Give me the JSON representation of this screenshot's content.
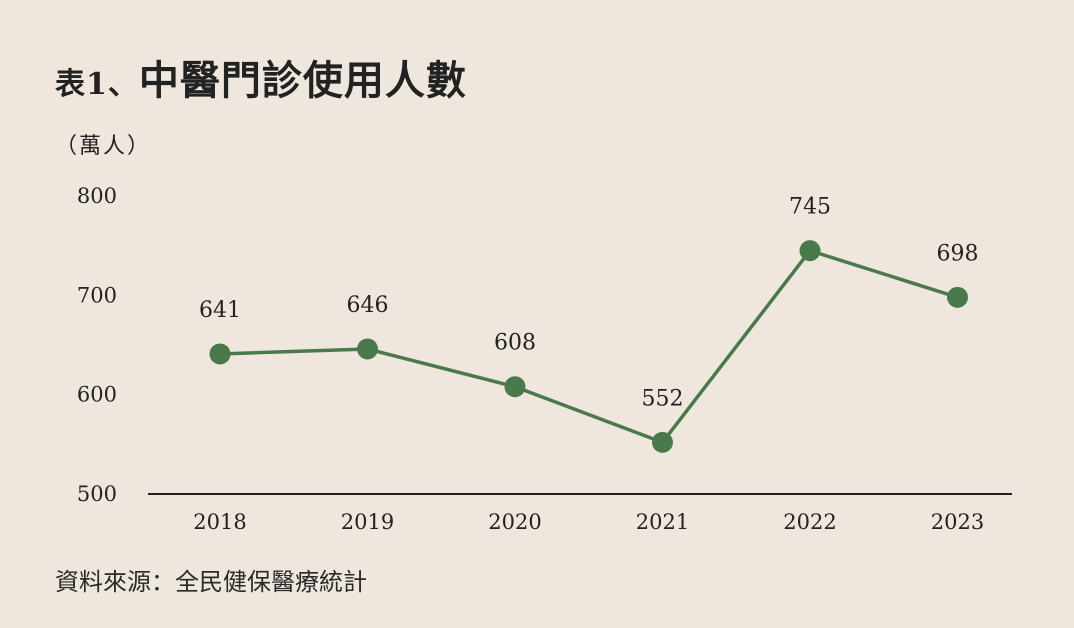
{
  "header": {
    "prefix": "表1、",
    "title": "中醫門診使用人數"
  },
  "unit_label": "（萬人）",
  "source": "資料來源：全民健保醫療統計",
  "colors": {
    "line": "#4a7a4c",
    "background": "#efe7dd",
    "axis": "#222222"
  },
  "chart_data": {
    "type": "line",
    "title": "中醫門診使用人數",
    "ylabel": "（萬人）",
    "xlabel": "",
    "categories": [
      "2018",
      "2019",
      "2020",
      "2021",
      "2022",
      "2023"
    ],
    "series": [
      {
        "values": [
          641,
          646,
          608,
          552,
          745,
          698
        ]
      }
    ],
    "ylim": [
      500,
      800
    ],
    "yticks": [
      800,
      700,
      600,
      500
    ],
    "data_labels": [
      "641",
      "646",
      "608",
      "552",
      "745",
      "698"
    ],
    "grid": false,
    "legend": "none"
  }
}
